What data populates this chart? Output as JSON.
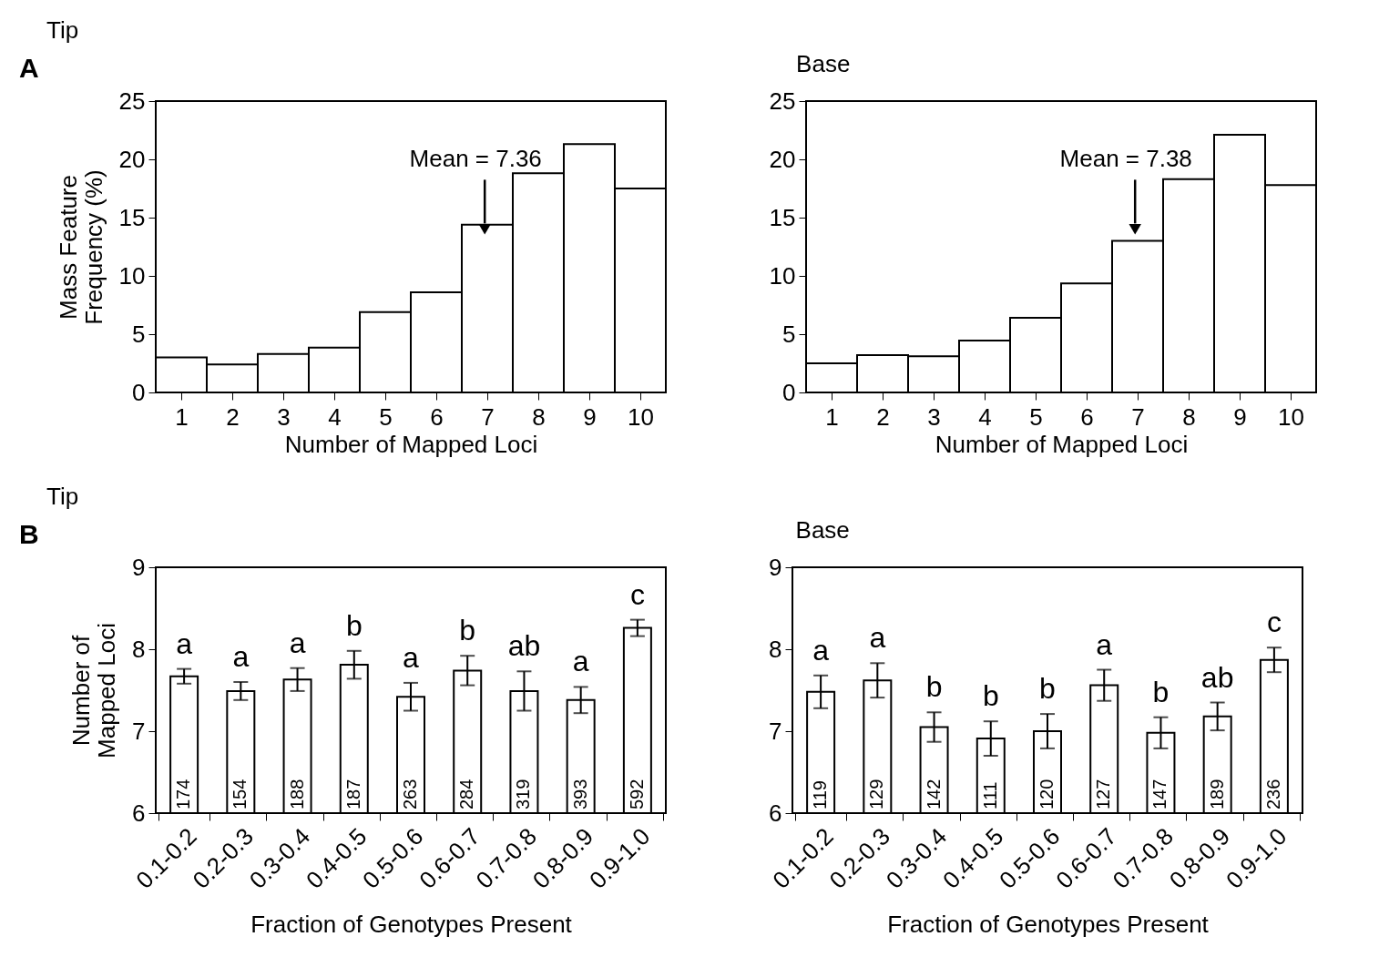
{
  "chart_data": [
    {
      "type": "histogram",
      "title": "Tip",
      "xlabel": "Number of Mapped Loci",
      "ylabel": "Mass Feature\nFrequency (%)",
      "bins": [
        0.5,
        1.5,
        2.5,
        3.5,
        4.5,
        5.5,
        6.5,
        7.5,
        8.5,
        9.5,
        10.5
      ],
      "values": [
        3.0,
        2.4,
        3.3,
        3.85,
        6.9,
        8.6,
        14.4,
        18.8,
        21.3,
        17.5
      ],
      "color": "#ffffff",
      "xlim": [
        0.5,
        10.5
      ],
      "xticks": [
        1,
        2,
        3,
        4,
        5,
        6,
        7,
        8,
        9,
        10
      ],
      "ylim": [
        0,
        25
      ],
      "yticks": [
        0,
        5,
        10,
        15,
        20,
        25
      ],
      "annotations": [
        "A",
        "Mean = 7.36"
      ]
    },
    {
      "type": "histogram",
      "title": "Base",
      "xlabel": "Number of Mapped Loci",
      "bins": [
        0.5,
        1.5,
        2.5,
        3.5,
        4.5,
        5.5,
        6.5,
        7.5,
        8.5,
        9.5,
        10.5
      ],
      "values": [
        2.5,
        3.2,
        3.1,
        4.45,
        6.4,
        9.35,
        13.0,
        18.3,
        22.1,
        17.8
      ],
      "color": "#ffffff",
      "xlim": [
        0.5,
        10.5
      ],
      "xticks": [
        1,
        2,
        3,
        4,
        5,
        6,
        7,
        8,
        9,
        10
      ],
      "ylim": [
        0,
        25
      ],
      "yticks": [
        0,
        5,
        10,
        15,
        20,
        25
      ],
      "annotations": [
        "Mean = 7.38"
      ]
    },
    {
      "type": "bar",
      "title": "Tip",
      "xlabel": "Fraction of Genotypes Present",
      "ylabel": "Number of\nMapped Loci",
      "categories": [
        "0.1-0.2",
        "0.2-0.3",
        "0.3-0.4",
        "0.4-0.5",
        "0.5-0.6",
        "0.6-0.7",
        "0.7-0.8",
        "0.8-0.9",
        "0.9-1.0"
      ],
      "values": [
        7.67,
        7.49,
        7.63,
        7.81,
        7.42,
        7.74,
        7.49,
        7.38,
        8.26
      ],
      "errors": [
        0.09,
        0.11,
        0.14,
        0.17,
        0.17,
        0.18,
        0.24,
        0.16,
        0.1
      ],
      "color": "#ffffff",
      "ylim": [
        6,
        9
      ],
      "yticks": [
        6,
        7,
        8,
        9
      ],
      "annotations": [
        "B",
        "a",
        "a",
        "a",
        "b",
        "a",
        "b",
        "ab",
        "a",
        "c",
        "174",
        "154",
        "188",
        "187",
        "263",
        "284",
        "319",
        "393",
        "592"
      ]
    },
    {
      "type": "bar",
      "title": "Base",
      "xlabel": "Fraction of Genotypes Present",
      "categories": [
        "0.1-0.2",
        "0.2-0.3",
        "0.3-0.4",
        "0.4-0.5",
        "0.5-0.6",
        "0.6-0.7",
        "0.7-0.8",
        "0.8-0.9",
        "0.9-1.0"
      ],
      "values": [
        7.48,
        7.62,
        7.05,
        6.91,
        7.0,
        7.56,
        6.98,
        7.18,
        7.87
      ],
      "errors": [
        0.2,
        0.21,
        0.18,
        0.21,
        0.21,
        0.19,
        0.19,
        0.17,
        0.15
      ],
      "color": "#ffffff",
      "ylim": [
        6,
        9
      ],
      "yticks": [
        6,
        7,
        8,
        9
      ],
      "annotations": [
        "a",
        "a",
        "b",
        "b",
        "b",
        "a",
        "b",
        "ab",
        "c",
        "119",
        "129",
        "142",
        "111",
        "120",
        "127",
        "147",
        "189",
        "236"
      ]
    }
  ]
}
